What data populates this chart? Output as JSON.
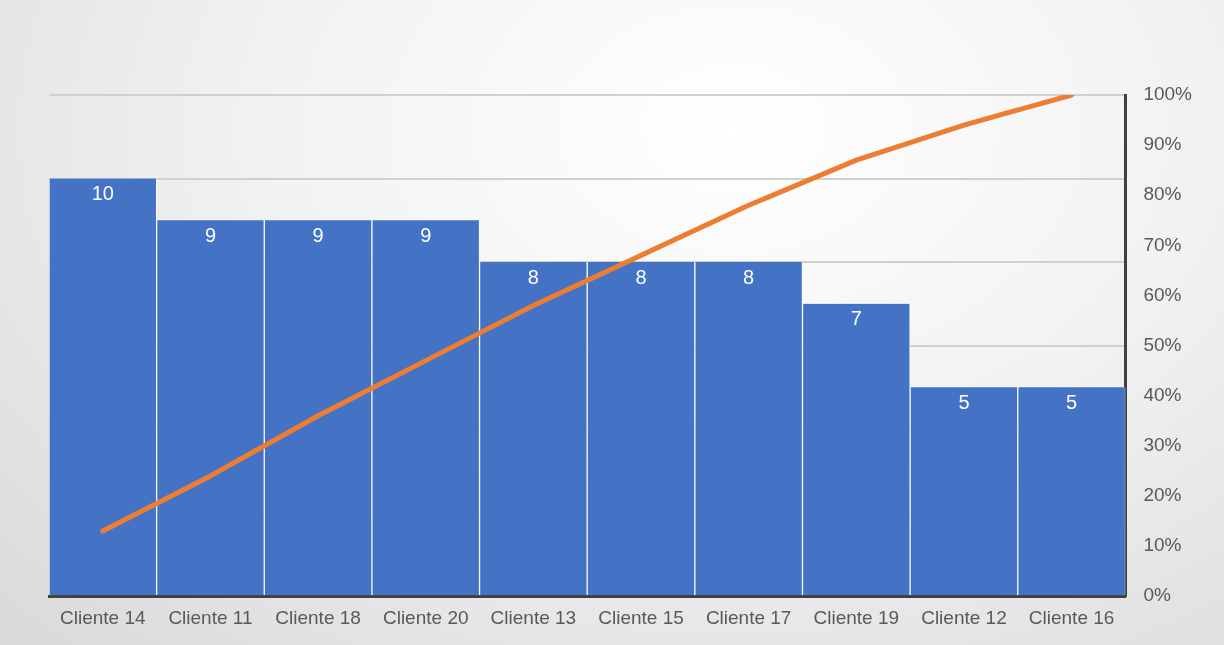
{
  "chart_data": {
    "type": "bar",
    "categories": [
      "Cliente 14",
      "Cliente 11",
      "Cliente 18",
      "Cliente 20",
      "Cliente 13",
      "Cliente 15",
      "Cliente 17",
      "Cliente 19",
      "Cliente 12",
      "Cliente 16"
    ],
    "series": [
      {
        "color": "#4472c4",
        "values": [
          10,
          9,
          9,
          9,
          8,
          8,
          8,
          7,
          5,
          5
        ],
        "value_labels": [
          "10",
          "9",
          "9",
          "9",
          "8",
          "8",
          "8",
          "7",
          "5",
          "5"
        ]
      },
      {
        "type": "line",
        "axis": "y2",
        "color": "#ed7d31",
        "values": [
          13,
          24,
          36,
          47,
          58,
          68,
          78,
          87,
          94,
          100
        ]
      }
    ],
    "ylim": [
      0,
      12
    ],
    "yticks": [
      {
        "value": 0,
        "label": null
      },
      {
        "value": 2,
        "label": null
      },
      {
        "value": 4,
        "label": null
      },
      {
        "value": 6,
        "label": null
      },
      {
        "value": 8,
        "label": null
      },
      {
        "value": 10,
        "label": null
      },
      {
        "value": 12,
        "label": null
      }
    ],
    "y2lim": [
      0,
      100
    ],
    "y2ticks": [
      {
        "value": 0,
        "label": "0%"
      },
      {
        "value": 10,
        "label": "10%"
      },
      {
        "value": 20,
        "label": "20%"
      },
      {
        "value": 30,
        "label": "30%"
      },
      {
        "value": 40,
        "label": "40%"
      },
      {
        "value": 50,
        "label": "50%"
      },
      {
        "value": 60,
        "label": "60%"
      },
      {
        "value": 70,
        "label": "70%"
      },
      {
        "value": 80,
        "label": "80%"
      },
      {
        "value": 90,
        "label": "90%"
      },
      {
        "value": 100,
        "label": "100%"
      }
    ],
    "grid": "y",
    "marker": "none",
    "legend": false
  }
}
